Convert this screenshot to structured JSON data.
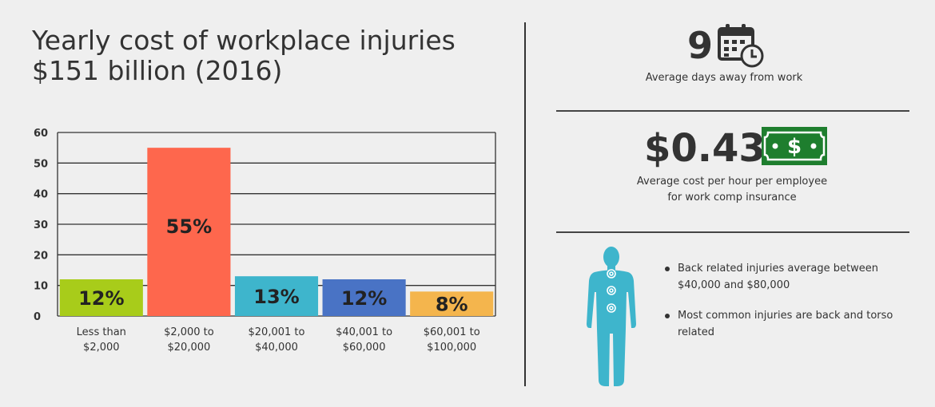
{
  "title": {
    "line1": "Yearly cost of workplace injuries",
    "line2": "$151 billion (2016)"
  },
  "chart_data": {
    "type": "bar",
    "categories": [
      [
        "Less than",
        "$2,000"
      ],
      [
        "$2,000 to",
        "$20,000"
      ],
      [
        "$20,001 to",
        "$40,000"
      ],
      [
        "$40,001 to",
        "$60,000"
      ],
      [
        "$60,001 to",
        "$100,000"
      ]
    ],
    "values": [
      12,
      55,
      13,
      12,
      8
    ],
    "bar_labels": [
      "12%",
      "55%",
      "13%",
      "12%",
      "8%"
    ],
    "bar_colors": [
      "#a8cc1a",
      "#fe674d",
      "#3eb5cc",
      "#4973c5",
      "#f4b54d"
    ],
    "ylim": [
      0,
      60
    ],
    "yticks": [
      0,
      10,
      20,
      30,
      40,
      50,
      60
    ],
    "grid": true,
    "legend": "none"
  },
  "stats": {
    "days": {
      "value": "9",
      "caption": "Average days away from work",
      "icon": "calendar-clock-icon"
    },
    "cost": {
      "value": "$0.43",
      "caption_line1": "Average cost per hour per employee",
      "caption_line2": "for work comp insurance",
      "icon": "dollar-bill-icon",
      "icon_text": "$",
      "icon_color": "#1e7e2e"
    }
  },
  "injuries": {
    "figure_icon": "human-body-icon",
    "figure_color": "#3eb5cc",
    "bullets": [
      "Back related injuries average between $40,000 and $80,000",
      "Most common injuries are back and torso related"
    ]
  }
}
